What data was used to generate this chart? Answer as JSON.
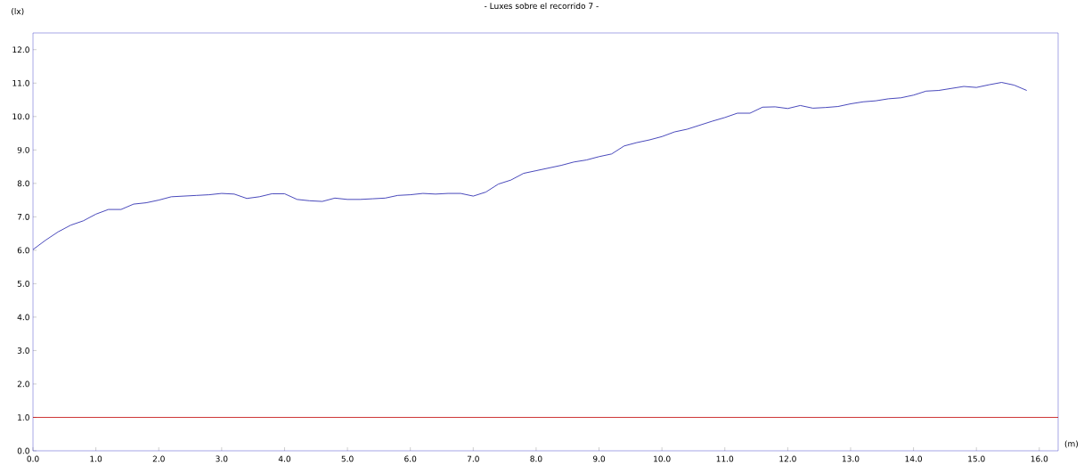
{
  "chart_data": {
    "type": "line",
    "title": "- Luxes sobre el recorrido 7 -",
    "xlabel": "(m)",
    "ylabel": "(lx)",
    "x": [
      0,
      0.2,
      0.4,
      0.6,
      0.8,
      1.0,
      1.2,
      1.4,
      1.6,
      1.8,
      2.0,
      2.2,
      2.4,
      2.6,
      2.8,
      3.0,
      3.2,
      3.4,
      3.6,
      3.8,
      4.0,
      4.2,
      4.4,
      4.6,
      4.8,
      5.0,
      5.2,
      5.4,
      5.6,
      5.8,
      6.0,
      6.2,
      6.4,
      6.6,
      6.8,
      7.0,
      7.2,
      7.4,
      7.6,
      7.8,
      8.0,
      8.2,
      8.4,
      8.6,
      8.8,
      9.0,
      9.2,
      9.4,
      9.6,
      9.8,
      10.0,
      10.2,
      10.4,
      10.6,
      10.8,
      11.0,
      11.2,
      11.4,
      11.6,
      11.8,
      12.0,
      12.2,
      12.4,
      12.6,
      12.8,
      13.0,
      13.2,
      13.4,
      13.6,
      13.8,
      14.0,
      14.2,
      14.4,
      14.6,
      14.8,
      15.0,
      15.2,
      15.4,
      15.6,
      15.8
    ],
    "series": [
      {
        "color": "#1a1aaa",
        "values": [
          6.02,
          6.3,
          6.55,
          6.75,
          6.88,
          7.08,
          7.22,
          7.22,
          7.38,
          7.42,
          7.5,
          7.6,
          7.62,
          7.64,
          7.66,
          7.7,
          7.68,
          7.55,
          7.6,
          7.69,
          7.69,
          7.52,
          7.48,
          7.46,
          7.56,
          7.52,
          7.52,
          7.54,
          7.56,
          7.64,
          7.66,
          7.7,
          7.68,
          7.7,
          7.7,
          7.62,
          7.74,
          7.98,
          8.1,
          8.3,
          8.38,
          8.46,
          8.54,
          8.64,
          8.7,
          8.8,
          8.88,
          9.12,
          9.22,
          9.3,
          9.4,
          9.54,
          9.62,
          9.74,
          9.86,
          9.97,
          10.1,
          10.1,
          10.28,
          10.29,
          10.24,
          10.33,
          10.25,
          10.27,
          10.3,
          10.38,
          10.44,
          10.47,
          10.53,
          10.56,
          10.64,
          10.76,
          10.78,
          10.84,
          10.9,
          10.87,
          10.95,
          11.02,
          10.94,
          10.78
        ]
      }
    ],
    "ref_lines": [
      {
        "axis": "y",
        "value": 1,
        "color": "#c00000"
      }
    ],
    "xlim": [
      0,
      16.3
    ],
    "ylim": [
      0,
      12.5
    ],
    "xticks": [
      {
        "value": 0,
        "label": "0.0"
      },
      {
        "value": 1,
        "label": "1.0"
      },
      {
        "value": 2,
        "label": "2.0"
      },
      {
        "value": 3,
        "label": "3.0"
      },
      {
        "value": 4,
        "label": "4.0"
      },
      {
        "value": 5,
        "label": "5.0"
      },
      {
        "value": 6,
        "label": "6.0"
      },
      {
        "value": 7,
        "label": "7.0"
      },
      {
        "value": 8,
        "label": "8.0"
      },
      {
        "value": 9,
        "label": "9.0"
      },
      {
        "value": 10,
        "label": "10.0"
      },
      {
        "value": 11,
        "label": "11.0"
      },
      {
        "value": 12,
        "label": "12.0"
      },
      {
        "value": 13,
        "label": "13.0"
      },
      {
        "value": 14,
        "label": "14.0"
      },
      {
        "value": 15,
        "label": "15.0"
      },
      {
        "value": 16,
        "label": "16.0"
      }
    ],
    "yticks": [
      {
        "value": 0,
        "label": "0.0"
      },
      {
        "value": 1,
        "label": "1.0"
      },
      {
        "value": 2,
        "label": "2.0"
      },
      {
        "value": 3,
        "label": "3.0"
      },
      {
        "value": 4,
        "label": "4.0"
      },
      {
        "value": 5,
        "label": "5.0"
      },
      {
        "value": 6,
        "label": "6.0"
      },
      {
        "value": 7,
        "label": "7.0"
      },
      {
        "value": 8,
        "label": "8.0"
      },
      {
        "value": 9,
        "label": "9.0"
      },
      {
        "value": 10,
        "label": "10.0"
      },
      {
        "value": 11,
        "label": "11.0"
      },
      {
        "value": 12,
        "label": "12.0"
      }
    ]
  }
}
